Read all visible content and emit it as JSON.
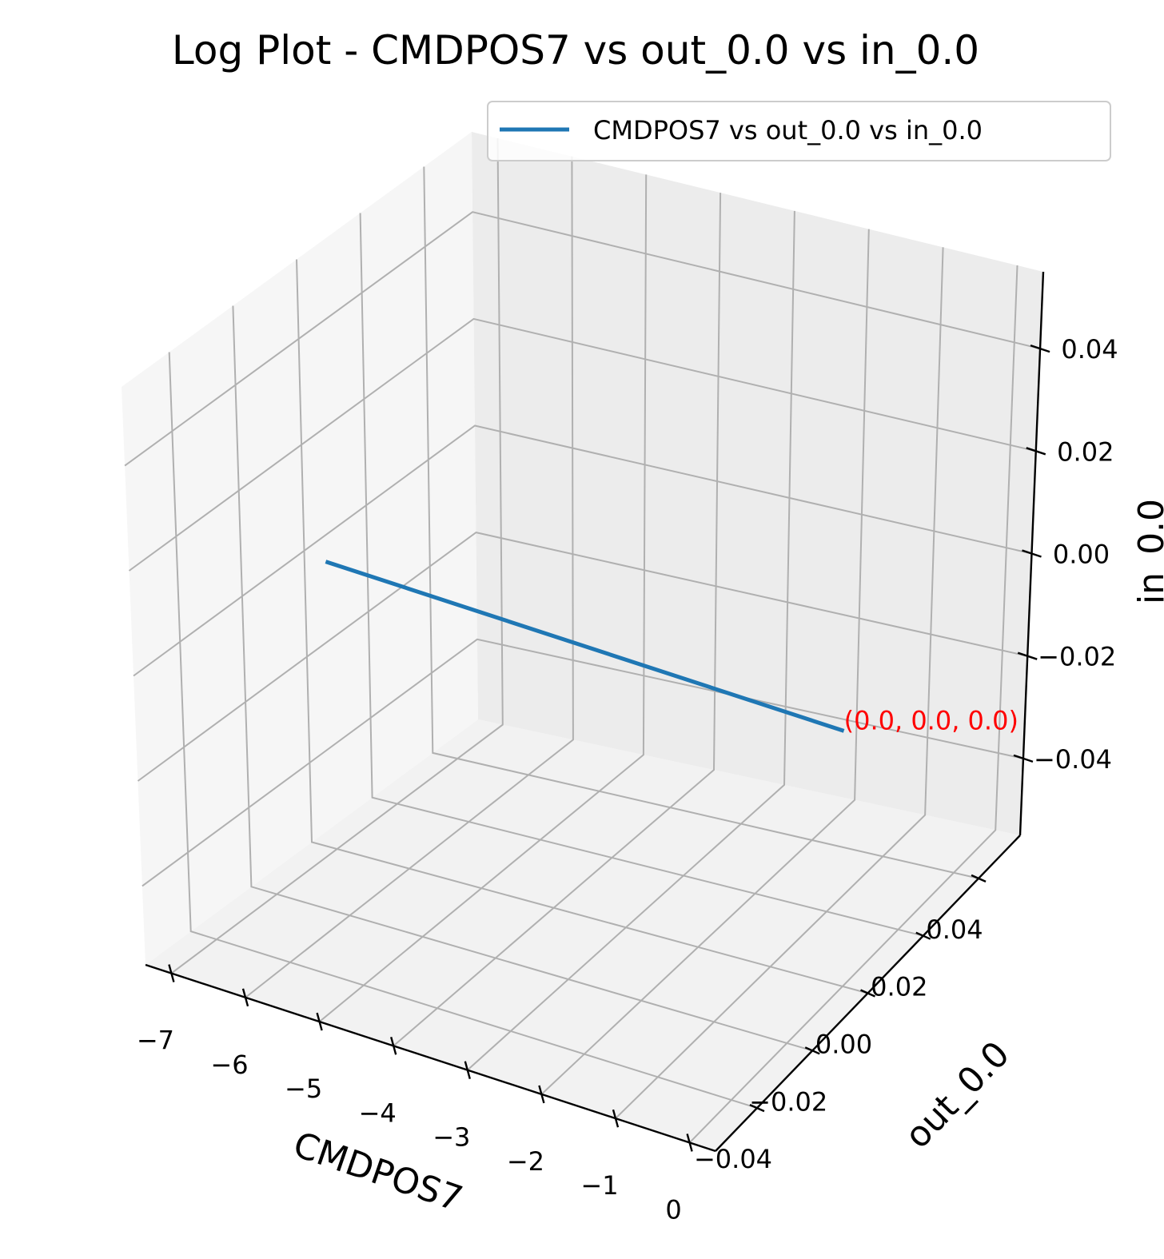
{
  "chart_data": {
    "type": "line3d",
    "title": "Log Plot - CMDPOS7 vs out_0.0 vs in_0.0",
    "xlabel": "CMDPOS7",
    "ylabel": "out_0.0",
    "zlabel": "in_0.0",
    "xlim": [
      -7.35,
      0.35
    ],
    "ylim": [
      -0.055,
      0.055
    ],
    "zlim": [
      -0.055,
      0.055
    ],
    "x_ticks": [
      -7,
      -6,
      -5,
      -4,
      -3,
      -2,
      -1,
      0
    ],
    "x_tick_labels": [
      "−7",
      "−6",
      "−5",
      "−4",
      "−3",
      "−2",
      "−1",
      "0"
    ],
    "y_ticks": [
      -0.04,
      -0.02,
      0.0,
      0.02,
      0.04
    ],
    "y_tick_labels": [
      "−0.04",
      "−0.02",
      "0.00",
      "0.02",
      "0.04"
    ],
    "z_ticks": [
      -0.04,
      -0.02,
      0.0,
      0.02,
      0.04
    ],
    "z_tick_labels": [
      "−0.04",
      "−0.02",
      "0.00",
      "0.02",
      "0.04"
    ],
    "grid": true,
    "legend_position": "top-right",
    "series": [
      {
        "name": "CMDPOS7 vs out_0.0 vs in_0.0",
        "color": "#1f77b4",
        "x": [
          -7,
          0
        ],
        "y": [
          0.0,
          0.0
        ],
        "z": [
          0.0,
          0.0
        ]
      }
    ],
    "annotations": [
      {
        "text": "(0.0, 0.0, 0.0)",
        "x": 0.0,
        "y": 0.0,
        "z": 0.0,
        "color": "#ff0000"
      }
    ]
  }
}
